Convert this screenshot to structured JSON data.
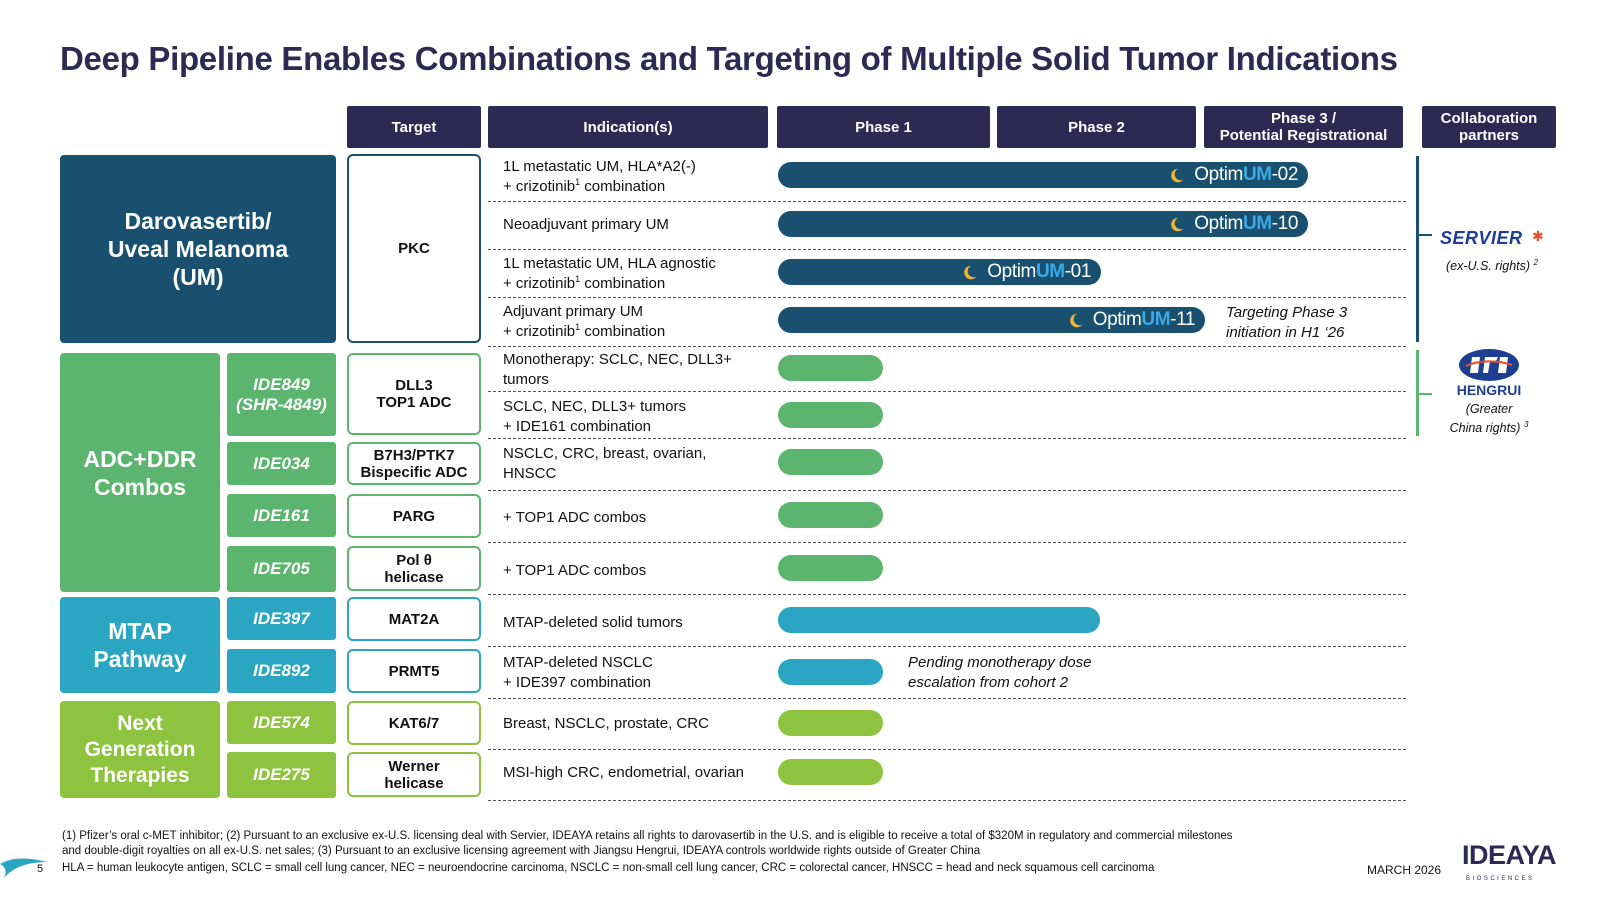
{
  "title": "Deep Pipeline Enables Combinations and Targeting of Multiple Solid Tumor Indications",
  "headers": {
    "target": "Target",
    "indications": "Indication(s)",
    "phase1": "Phase 1",
    "phase2": "Phase  2",
    "phase3_line1": "Phase 3 /",
    "phase3_line2": "Potential Registrational",
    "collab_line1": "Collaboration",
    "collab_line2": "partners"
  },
  "groups": {
    "um": [
      "Darovasertib/",
      "Uveal Melanoma",
      "(UM)"
    ],
    "adc": [
      "ADC+DDR",
      "Combos"
    ],
    "mtap": [
      "MTAP",
      "Pathway"
    ],
    "next": [
      "Next",
      "Generation",
      "Therapies"
    ]
  },
  "programs": {
    "ide849": [
      "IDE849",
      "(SHR-4849)"
    ],
    "ide034": "IDE034",
    "ide161": "IDE161",
    "ide705": "IDE705",
    "ide397": "IDE397",
    "ide892": "IDE892",
    "ide574": "IDE574",
    "ide275": "IDE275"
  },
  "targets": {
    "pkc": "PKC",
    "dll3": [
      "DLL3",
      "TOP1 ADC"
    ],
    "b7h3": [
      "B7H3/PTK7",
      "Bispecific ADC"
    ],
    "parg": "PARG",
    "polq": [
      "Pol θ",
      "helicase"
    ],
    "mat2a": "MAT2A",
    "prmt5": "PRMT5",
    "kat": "KAT6/7",
    "werner": [
      "Werner",
      "helicase"
    ]
  },
  "indications": {
    "r1": {
      "line1": "1L metastatic UM, HLA*A2(-)",
      "line2a": "+ crizotinib",
      "sup": "1",
      "line2b": " combination"
    },
    "r2": "Neoadjuvant primary UM",
    "r3": {
      "line1": "1L metastatic UM, HLA agnostic",
      "line2a": "+ crizotinib",
      "sup": "1",
      "line2b": " combination"
    },
    "r4": {
      "line1": "Adjuvant primary UM",
      "line2a": "+ crizotinib",
      "sup": "1",
      "line2b": " combination"
    },
    "r5": [
      "Monotherapy: SCLC, NEC, DLL3+",
      "tumors"
    ],
    "r6": [
      "SCLC, NEC, DLL3+ tumors",
      "+ IDE161 combination"
    ],
    "r7": [
      "NSCLC, CRC, breast, ovarian,",
      "HNSCC"
    ],
    "r8": "+ TOP1 ADC combos",
    "r9": "+ TOP1 ADC combos",
    "r10": "MTAP-deleted solid tumors",
    "r11": [
      "MTAP-deleted NSCLC",
      "+ IDE397 combination"
    ],
    "r12": "Breast, NSCLC, prostate, CRC",
    "r13": "MSI-high CRC, endometrial, ovarian"
  },
  "trials": {
    "t02": {
      "pre": "Optim",
      "um": "UM",
      "post": "-02"
    },
    "t10": {
      "pre": "Optim",
      "um": "UM",
      "post": "-10"
    },
    "t01": {
      "pre": "Optim",
      "um": "UM",
      "post": "-01"
    },
    "t11": {
      "pre": "Optim",
      "um": "UM",
      "post": "-11"
    }
  },
  "notes": {
    "phase3": [
      "Targeting Phase 3",
      "initiation in H1 ‘26"
    ],
    "pending": [
      "Pending monotherapy dose",
      "escalation from cohort 2"
    ]
  },
  "partners": {
    "servier": "SERVIER",
    "servier_rights": "(ex-U.S. rights)",
    "servier_sup": "2",
    "hengrui": "HENGRUI",
    "hengrui_rights_1": "(Greater",
    "hengrui_rights_2": "China rights)",
    "hengrui_sup": "3"
  },
  "footnotes": [
    "(1) Pfizer’s oral c-MET inhibitor; (2) Pursuant to an exclusive ex-U.S. licensing deal with Servier, IDEAYA retains all rights to darovasertib in the U.S. and is eligible to receive a total of $320M in regulatory and commercial milestones",
    "and double-digit royalties on all ex-U.S. net sales; (3) Pursuant to an exclusive licensing agreement with Jiangsu Hengrui, IDEAYA controls worldwide rights outside of Greater China",
    "HLA = human leukocyte antigen, SCLC = small cell lung cancer, NEC = neuroendocrine carcinoma, NSCLC = non-small cell lung cancer, CRC = colorectal cancer, HNSCC = head and neck squamous cell carcinoma"
  ],
  "page_number": "5",
  "date": "MARCH 2026",
  "logo": "IDEAYA",
  "logo_sub": "BIOSCIENCES",
  "colors": {
    "navy": "#2c2a52",
    "um_blue": "#19506f",
    "green": "#5bb56e",
    "teal": "#2aa6c2",
    "lime": "#8dc33f",
    "trial_accent": "#3aa9e6",
    "moon": "#f2b632"
  },
  "icons": {
    "trial": "crescent-moon-icon",
    "hengrui": "hengrui-logo-icon",
    "servier": "servier-star-icon"
  }
}
